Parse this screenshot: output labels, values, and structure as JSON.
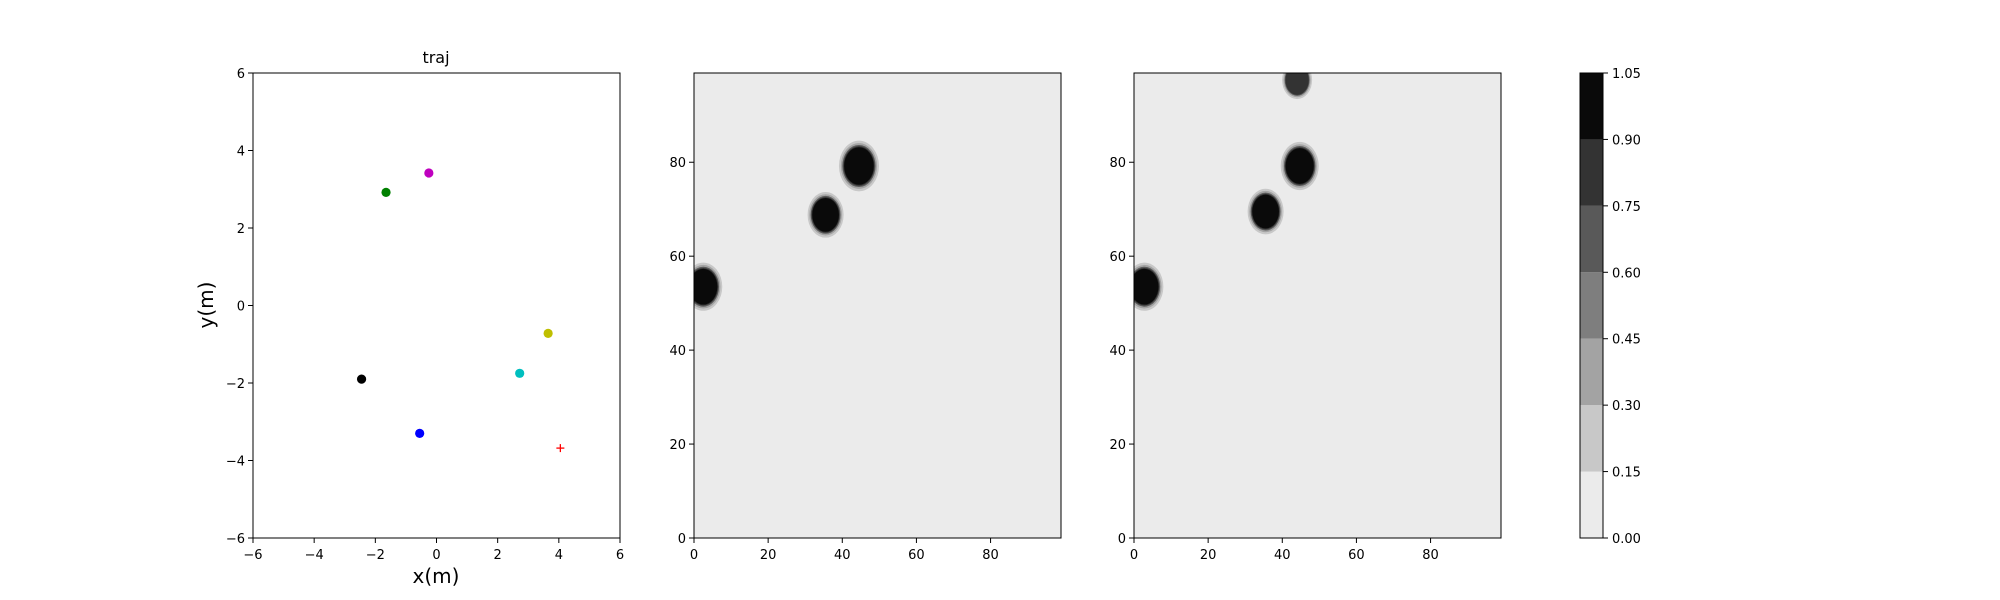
{
  "chart_data": [
    {
      "type": "scatter",
      "title": "traj",
      "xlabel": "x(m)",
      "ylabel": "y(m)",
      "xlim": [
        -6,
        6
      ],
      "ylim": [
        -6,
        6
      ],
      "xticks": [
        -6,
        -4,
        -2,
        0,
        2,
        4,
        6
      ],
      "yticks": [
        -6,
        -4,
        -2,
        0,
        2,
        4,
        6
      ],
      "grid": false,
      "points": [
        {
          "x": -1.65,
          "y": 2.92,
          "color": "#008000",
          "marker": "circle"
        },
        {
          "x": -0.25,
          "y": 3.42,
          "color": "#bf00bf",
          "marker": "circle"
        },
        {
          "x": 3.65,
          "y": -0.72,
          "color": "#bfbf00",
          "marker": "circle"
        },
        {
          "x": 2.72,
          "y": -1.75,
          "color": "#00bfbf",
          "marker": "circle"
        },
        {
          "x": -2.45,
          "y": -1.9,
          "color": "#000000",
          "marker": "circle"
        },
        {
          "x": -0.55,
          "y": -3.3,
          "color": "#0000ff",
          "marker": "circle"
        },
        {
          "x": 4.05,
          "y": -3.68,
          "color": "#ff0000",
          "marker": "plus"
        }
      ]
    },
    {
      "type": "heatmap",
      "xlim": [
        0,
        99
      ],
      "ylim": [
        0,
        99
      ],
      "xticks": [
        0,
        20,
        40,
        60,
        80
      ],
      "yticks": [
        0,
        20,
        40,
        60,
        80
      ],
      "background_level": 0.07,
      "blobs": [
        {
          "x": 2.5,
          "y": 53.5,
          "radius": 3.8,
          "level": 1.0
        },
        {
          "x": 35.5,
          "y": 68.8,
          "radius": 3.6,
          "level": 1.0
        },
        {
          "x": 44.5,
          "y": 79.2,
          "radius": 4.0,
          "level": 1.0
        }
      ]
    },
    {
      "type": "heatmap",
      "xlim": [
        0,
        99
      ],
      "ylim": [
        0,
        99
      ],
      "xticks": [
        0,
        20,
        40,
        60,
        80
      ],
      "yticks": [
        0,
        20,
        40,
        60,
        80
      ],
      "background_level": 0.07,
      "blobs": [
        {
          "x": 2.8,
          "y": 53.5,
          "radius": 3.8,
          "level": 1.0
        },
        {
          "x": 35.5,
          "y": 69.5,
          "radius": 3.6,
          "level": 1.0
        },
        {
          "x": 44.7,
          "y": 79.2,
          "radius": 3.8,
          "level": 1.0
        },
        {
          "x": 44.0,
          "y": 97.5,
          "radius": 3.0,
          "level": 0.85
        }
      ]
    }
  ],
  "colorbar": {
    "levels": [
      0.0,
      0.15,
      0.3,
      0.45,
      0.6,
      0.75,
      0.9,
      1.05
    ],
    "tick_labels": [
      "0.00",
      "0.15",
      "0.30",
      "0.45",
      "0.60",
      "0.75",
      "0.90",
      "1.05"
    ],
    "colors": [
      "#ebebeb",
      "#c8c8c8",
      "#a3a3a3",
      "#7e7e7e",
      "#595959",
      "#333333",
      "#0a0a0a"
    ]
  }
}
